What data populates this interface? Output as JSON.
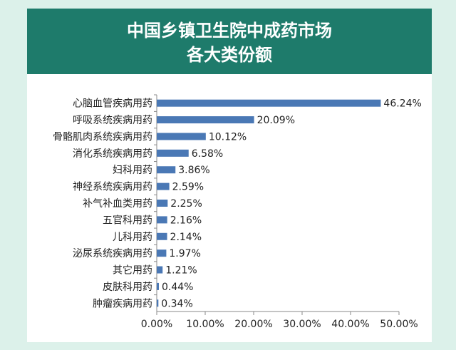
{
  "chart_data": {
    "type": "bar",
    "orientation": "horizontal",
    "title": "中国乡镇卫生院中成药市场",
    "subtitle": "各大类份额",
    "categories": [
      "心脑血管疾病用药",
      "呼吸系统疾病用药",
      "骨骼肌肉系统疾病用药",
      "消化系统疾病用药",
      "妇科用药",
      "神经系统疾病用药",
      "补气补血类用药",
      "五官科用药",
      "儿科用药",
      "泌尿系统疾病用药",
      "其它用药",
      "皮肤科用药",
      "肿瘤疾病用药"
    ],
    "values": [
      46.24,
      20.09,
      10.12,
      6.58,
      3.86,
      2.59,
      2.25,
      2.16,
      2.14,
      1.97,
      1.21,
      0.44,
      0.34
    ],
    "value_labels": [
      "46.24%",
      "20.09%",
      "10.12%",
      "6.58%",
      "3.86%",
      "2.59%",
      "2.25%",
      "2.16%",
      "2.14%",
      "1.97%",
      "1.21%",
      "0.44%",
      "0.34%"
    ],
    "color": "#4a78b5",
    "xlim": [
      0,
      50
    ],
    "xticks": [
      {
        "value": 0,
        "label": "0.00%"
      },
      {
        "value": 10,
        "label": "10.00%"
      },
      {
        "value": 20,
        "label": "20.00%"
      },
      {
        "value": 30,
        "label": "30.00%"
      },
      {
        "value": 40,
        "label": "40.00%"
      },
      {
        "value": 50,
        "label": "50.00%"
      }
    ],
    "grid": false
  }
}
